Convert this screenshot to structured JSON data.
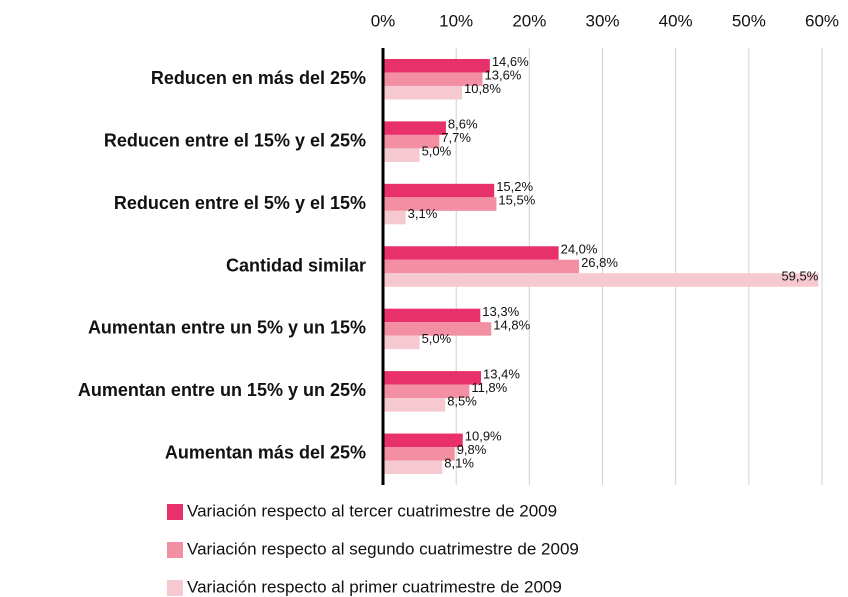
{
  "chart_data": {
    "type": "bar",
    "orientation": "horizontal",
    "categories": [
      "Reducen en más del 25%",
      "Reducen entre el 15% y el 25%",
      "Reducen entre el 5% y el 15%",
      "Cantidad similar",
      "Aumentan entre un 5% y un 15%",
      "Aumentan entre un 15% y un 25%",
      "Aumentan más del 25%"
    ],
    "series": [
      {
        "name": "Variación respecto al tercer cuatrimestre de 2009",
        "color": "#e8306a",
        "values": [
          14.6,
          8.6,
          15.2,
          24.0,
          13.3,
          13.4,
          10.9
        ],
        "value_labels": [
          "14,6%",
          "8,6%",
          "15,2%",
          "24,0%",
          "13,3%",
          "13,4%",
          "10,9%"
        ]
      },
      {
        "name": "Variación respecto al segundo cuatrimestre de 2009",
        "color": "#f28fa3",
        "values": [
          13.6,
          7.7,
          15.5,
          26.8,
          14.8,
          11.8,
          9.8
        ],
        "value_labels": [
          "13,6%",
          "7,7%",
          "15,5%",
          "26,8%",
          "14,8%",
          "11,8%",
          "9,8%"
        ]
      },
      {
        "name": "Variación respecto al primer cuatrimestre de 2009",
        "color": "#f6c9d0",
        "values": [
          10.8,
          5.0,
          3.1,
          59.5,
          5.0,
          8.5,
          8.1
        ],
        "value_labels": [
          "10,8%",
          "5,0%",
          "3,1%",
          "59,5%",
          "5,0%",
          "8,5%",
          "8,1%"
        ]
      }
    ],
    "xlim": [
      0,
      60
    ],
    "xticks": [
      {
        "value": 0,
        "label": "0%"
      },
      {
        "value": 10,
        "label": "10%"
      },
      {
        "value": 20,
        "label": "20%"
      },
      {
        "value": 30,
        "label": "30%"
      },
      {
        "value": 40,
        "label": "40%"
      },
      {
        "value": 50,
        "label": "50%"
      },
      {
        "value": 60,
        "label": "60%"
      }
    ],
    "grid": true,
    "legend": "bottom"
  }
}
